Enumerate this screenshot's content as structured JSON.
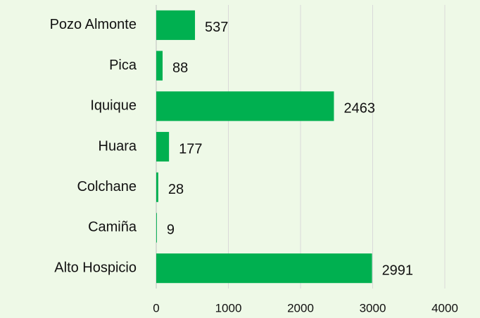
{
  "chart_data": {
    "type": "bar",
    "orientation": "horizontal",
    "categories": [
      "Pozo Almonte",
      "Pica",
      "Iquique",
      "Huara",
      "Colchane",
      "Camiña",
      "Alto Hospicio"
    ],
    "values": [
      537,
      88,
      2463,
      177,
      28,
      9,
      2991
    ],
    "color": "#00b050",
    "xlim": [
      0,
      4000
    ],
    "xticks": [
      0,
      1000,
      2000,
      3000,
      4000
    ],
    "grid": true
  }
}
